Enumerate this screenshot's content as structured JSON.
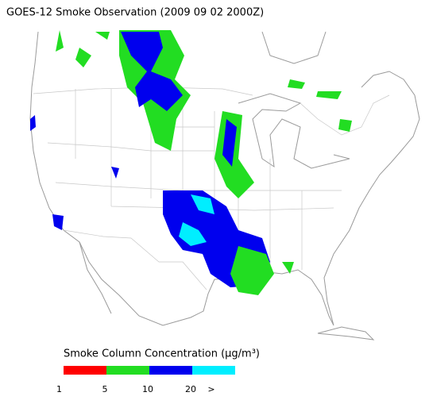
{
  "header": {
    "title": "GOES-12 Smoke Observation (2009 09 02  2000Z)"
  },
  "legend": {
    "title": "Smoke Column Concentration (µg/m³)",
    "colors": [
      "#ff0000",
      "#22dd22",
      "#0000ee",
      "#00eeff"
    ],
    "labels": [
      "1",
      "5",
      "10",
      "20",
      ">"
    ]
  }
}
